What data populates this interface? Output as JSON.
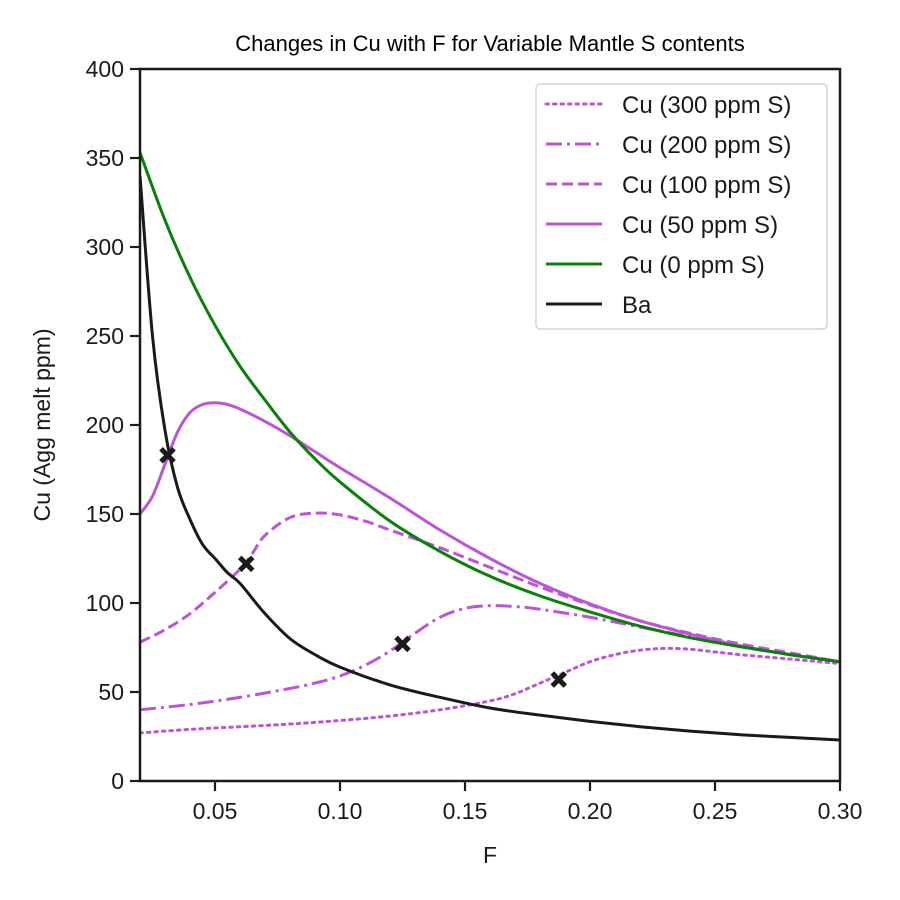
{
  "chart_data": {
    "type": "line",
    "title": "Changes in Cu with F for Variable Mantle S contents",
    "xlabel": "F",
    "ylabel": "Cu (Agg melt ppm)",
    "xlim": [
      0.02,
      0.3
    ],
    "ylim": [
      0,
      400
    ],
    "xticks": [
      0.05,
      0.1,
      0.15,
      0.2,
      0.25,
      0.3
    ],
    "xtick_labels": [
      "0.05",
      "0.10",
      "0.15",
      "0.20",
      "0.25",
      "0.30"
    ],
    "yticks": [
      0,
      50,
      100,
      150,
      200,
      250,
      300,
      350,
      400
    ],
    "ytick_labels": [
      "0",
      "50",
      "100",
      "150",
      "200",
      "250",
      "300",
      "350",
      "400"
    ],
    "grid": false,
    "legend_position": "top-right",
    "series": [
      {
        "name": "Cu (300 ppm S)",
        "color": "#bb55d6",
        "style": "dotted",
        "x": [
          0.02,
          0.04,
          0.06,
          0.08,
          0.1,
          0.12,
          0.14,
          0.16,
          0.17,
          0.18,
          0.19,
          0.2,
          0.21,
          0.22,
          0.23,
          0.24,
          0.25,
          0.26,
          0.28,
          0.3
        ],
        "y": [
          27,
          29,
          30.5,
          32,
          34,
          36.5,
          40,
          45,
          49,
          55,
          61,
          67,
          71,
          73.5,
          74.5,
          74,
          72.5,
          71,
          68.5,
          66
        ]
      },
      {
        "name": "Cu (200 ppm S)",
        "color": "#bb55d6",
        "style": "dashdot",
        "x": [
          0.02,
          0.04,
          0.06,
          0.08,
          0.09,
          0.1,
          0.11,
          0.12,
          0.13,
          0.14,
          0.15,
          0.16,
          0.17,
          0.18,
          0.2,
          0.22,
          0.24,
          0.26,
          0.28,
          0.3
        ],
        "y": [
          40,
          43,
          47,
          52,
          55,
          59,
          65,
          73,
          83,
          92,
          97,
          98.5,
          98,
          96.5,
          92,
          86.5,
          81,
          75.5,
          71,
          67
        ]
      },
      {
        "name": "Cu (100 ppm S)",
        "color": "#bb55d6",
        "style": "dashed",
        "x": [
          0.02,
          0.03,
          0.04,
          0.05,
          0.06,
          0.065,
          0.07,
          0.08,
          0.09,
          0.1,
          0.11,
          0.12,
          0.14,
          0.16,
          0.18,
          0.2,
          0.22,
          0.24,
          0.26,
          0.28,
          0.3
        ],
        "y": [
          78,
          85,
          94,
          106,
          119,
          128,
          138,
          148,
          150.5,
          149.5,
          146,
          141,
          131,
          120,
          109,
          99,
          90,
          83,
          77,
          72,
          67
        ]
      },
      {
        "name": "Cu (50 ppm S)",
        "color": "#bb55d6",
        "style": "solid",
        "x": [
          0.02,
          0.025,
          0.03,
          0.035,
          0.04,
          0.045,
          0.05,
          0.055,
          0.06,
          0.07,
          0.08,
          0.09,
          0.1,
          0.12,
          0.14,
          0.16,
          0.18,
          0.2,
          0.22,
          0.24,
          0.26,
          0.28,
          0.3
        ],
        "y": [
          150,
          160,
          178,
          196,
          207,
          211.5,
          212.5,
          211.5,
          209,
          202,
          194,
          185,
          176,
          159,
          141,
          125,
          111,
          99.5,
          90,
          82.5,
          76,
          71,
          67
        ]
      },
      {
        "name": "Cu (0 ppm S)",
        "color": "#0a7f0a",
        "style": "solid",
        "x": [
          0.02,
          0.03,
          0.04,
          0.05,
          0.06,
          0.07,
          0.08,
          0.09,
          0.1,
          0.12,
          0.14,
          0.16,
          0.18,
          0.2,
          0.22,
          0.24,
          0.26,
          0.28,
          0.3
        ],
        "y": [
          353,
          315,
          283,
          256,
          233,
          214,
          196,
          181,
          168,
          146,
          129,
          115,
          104,
          95,
          87,
          80.5,
          75.5,
          71,
          67
        ]
      },
      {
        "name": "Ba",
        "color": "#1a1a1a",
        "style": "solid",
        "x": [
          0.02,
          0.025,
          0.03,
          0.035,
          0.04,
          0.045,
          0.05,
          0.055,
          0.06,
          0.07,
          0.08,
          0.09,
          0.1,
          0.12,
          0.14,
          0.16,
          0.18,
          0.2,
          0.22,
          0.24,
          0.26,
          0.28,
          0.3
        ],
        "y": [
          340,
          250,
          197,
          165,
          147,
          133,
          125,
          117,
          111,
          94,
          80,
          71,
          64,
          54,
          47,
          41,
          37,
          33.5,
          30.5,
          28,
          26,
          24.5,
          23
        ]
      }
    ],
    "markers": [
      {
        "x": 0.031,
        "y": 183
      },
      {
        "x": 0.0625,
        "y": 122
      },
      {
        "x": 0.125,
        "y": 77
      },
      {
        "x": 0.1875,
        "y": 57
      }
    ]
  }
}
